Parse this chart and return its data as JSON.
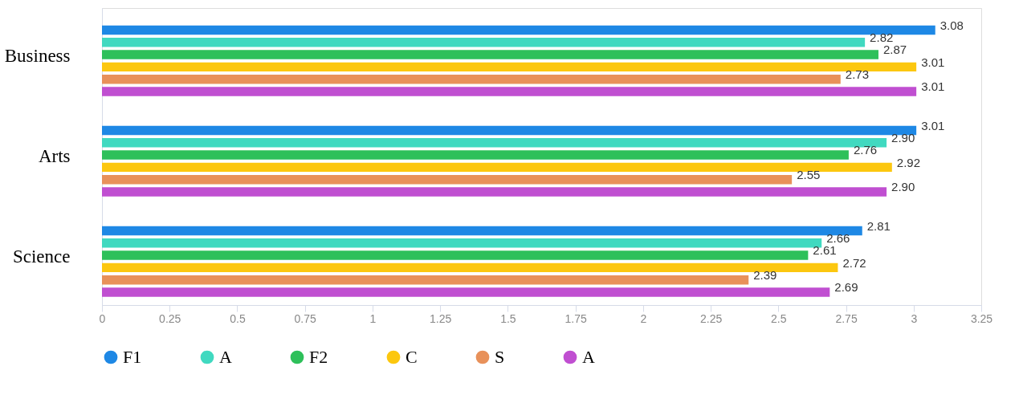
{
  "chart_data": {
    "type": "bar",
    "orientation": "horizontal",
    "categories": [
      "Business",
      "Arts",
      "Science"
    ],
    "series": [
      {
        "name": "F1",
        "color": "#1e88e5",
        "values": [
          3.08,
          3.01,
          2.81
        ],
        "value_labels": [
          "3.08",
          "3.01",
          "2.81"
        ]
      },
      {
        "name": "A",
        "color": "#40d9c0",
        "values": [
          2.82,
          2.9,
          2.66
        ],
        "value_labels": [
          "2.82",
          "2.90",
          "2.66"
        ]
      },
      {
        "name": "F2",
        "color": "#2ec05a",
        "values": [
          2.87,
          2.76,
          2.61
        ],
        "value_labels": [
          "2.87",
          "2.76",
          "2.61"
        ]
      },
      {
        "name": "C",
        "color": "#fcc70f",
        "values": [
          3.01,
          2.92,
          2.72
        ],
        "value_labels": [
          "3.01",
          "2.92",
          "2.72"
        ]
      },
      {
        "name": "S",
        "color": "#e8915a",
        "values": [
          2.73,
          2.55,
          2.39
        ],
        "value_labels": [
          "2.73",
          "2.55",
          "2.39"
        ]
      },
      {
        "name": "A",
        "color": "#c04fd1",
        "values": [
          3.01,
          2.9,
          2.69
        ],
        "value_labels": [
          "3.01",
          "2.90",
          "2.69"
        ]
      }
    ],
    "xlim": [
      0,
      3.25
    ],
    "xticks": [
      0,
      0.25,
      0.5,
      0.75,
      1,
      1.25,
      1.5,
      1.75,
      2,
      2.25,
      2.5,
      2.75,
      3,
      3.25
    ],
    "grid": false,
    "legend": "bottom"
  }
}
